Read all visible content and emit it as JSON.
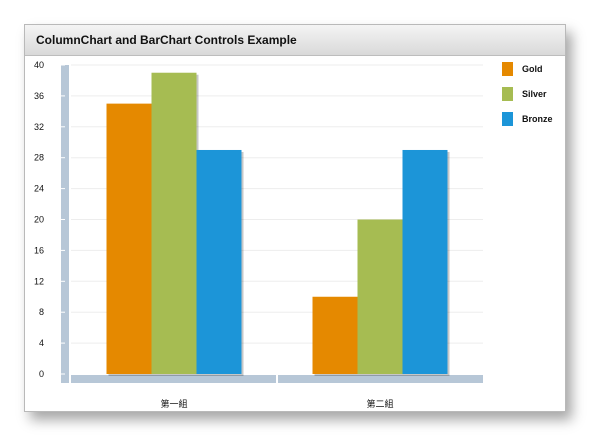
{
  "panel": {
    "title": "ColumnChart and BarChart Controls Example"
  },
  "chart_data": {
    "type": "bar",
    "categories": [
      "第一組",
      "第二組"
    ],
    "series": [
      {
        "name": "Gold",
        "values": [
          35,
          10
        ],
        "color": "#e58900"
      },
      {
        "name": "Silver",
        "values": [
          39,
          20
        ],
        "color": "#a6bc52"
      },
      {
        "name": "Bronze",
        "values": [
          29,
          29
        ],
        "color": "#1c95d8"
      }
    ],
    "ylim": [
      0,
      40
    ],
    "yticks": [
      0,
      4,
      8,
      12,
      16,
      20,
      24,
      28,
      32,
      36,
      40
    ],
    "grid": true,
    "legend": "right",
    "axis_color": "#b7c7d7"
  }
}
